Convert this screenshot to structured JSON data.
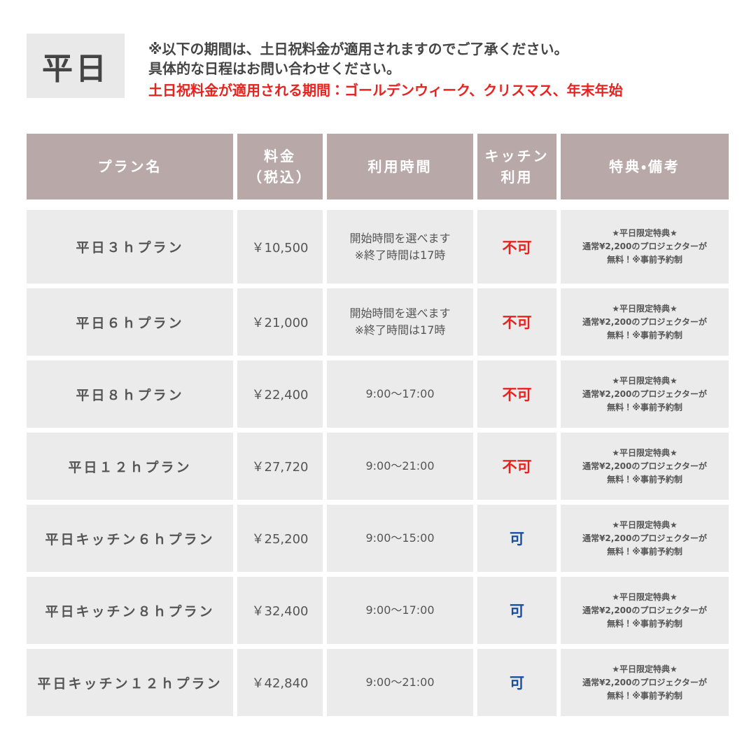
{
  "header": {
    "badge": "平日",
    "notes": [
      "※以下の期間は、土日祝料金が適用されますのでご了承ください。",
      "具体的な日程はお問い合わせください。"
    ],
    "highlight": "土日祝料金が適用される期間：ゴールデンウィーク、クリスマス、年末年始"
  },
  "table": {
    "headers": [
      [
        "プラン名"
      ],
      [
        "料金",
        "（税込）"
      ],
      [
        "利用時間"
      ],
      [
        "キッチン",
        "利用"
      ],
      [
        "特典・備考"
      ]
    ],
    "rows": [
      [
        [
          "平日３ｈプラン"
        ],
        [
          "￥10,500"
        ],
        [
          "開始時間を選べます",
          "※終了時間は17時"
        ],
        [
          "不可"
        ],
        [
          "★平日限定特典★",
          "通常¥2,200のプロジェクターが",
          "無料！※事前予約制"
        ]
      ],
      [
        [
          "平日６ｈプラン"
        ],
        [
          "￥21,000"
        ],
        [
          "開始時間を選べます",
          "※終了時間は17時"
        ],
        [
          "不可"
        ],
        [
          "★平日限定特典★",
          "通常¥2,200のプロジェクターが",
          "無料！※事前予約制"
        ]
      ],
      [
        [
          "平日８ｈプラン"
        ],
        [
          "￥22,400"
        ],
        [
          "9:00〜17:00"
        ],
        [
          "不可"
        ],
        [
          "★平日限定特典★",
          "通常¥2,200のプロジェクターが",
          "無料！※事前予約制"
        ]
      ],
      [
        [
          "平日１２ｈプラン"
        ],
        [
          "￥27,720"
        ],
        [
          "9:00〜21:00"
        ],
        [
          "不可"
        ],
        [
          "★平日限定特典★",
          "通常¥2,200のプロジェクターが",
          "無料！※事前予約制"
        ]
      ],
      [
        [
          "平日キッチン６ｈプラン"
        ],
        [
          "￥25,200"
        ],
        [
          "9:00〜15:00"
        ],
        [
          "可"
        ],
        [
          "★平日限定特典★",
          "通常¥2,200のプロジェクターが",
          "無料！※事前予約制"
        ]
      ],
      [
        [
          "平日キッチン８ｈプラン"
        ],
        [
          "￥32,400"
        ],
        [
          "9:00〜17:00"
        ],
        [
          "可"
        ],
        [
          "★平日限定特典★",
          "通常¥2,200のプロジェクターが",
          "無料！※事前予約制"
        ]
      ],
      [
        [
          "平日キッチン１２ｈプラン"
        ],
        [
          "￥42,840"
        ],
        [
          "9:00〜21:00"
        ],
        [
          "可"
        ],
        [
          "★平日限定特典★",
          "通常¥2,200のプロジェクターが",
          "無料！※事前予約制"
        ]
      ]
    ],
    "kitchen_colors": [
      "#e8231f",
      "#e8231f",
      "#e8231f",
      "#e8231f",
      "#1a4fa0",
      "#1a4fa0",
      "#1a4fa0"
    ]
  }
}
